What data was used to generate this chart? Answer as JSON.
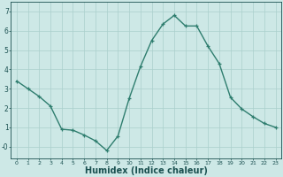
{
  "x": [
    0,
    1,
    2,
    3,
    4,
    5,
    6,
    7,
    8,
    9,
    10,
    11,
    12,
    13,
    14,
    15,
    16,
    17,
    18,
    19,
    20,
    21,
    22,
    23
  ],
  "y": [
    3.4,
    3.0,
    2.6,
    2.1,
    0.9,
    0.85,
    0.6,
    0.3,
    -0.2,
    0.55,
    2.5,
    4.15,
    5.5,
    6.35,
    6.8,
    6.25,
    6.25,
    5.2,
    4.3,
    2.55,
    1.95,
    1.55,
    1.2,
    1.0
  ],
  "line_color": "#2e7d6e",
  "marker": "+",
  "marker_size": 3.5,
  "bg_color": "#cde8e6",
  "grid_color": "#aacfcc",
  "tick_color": "#1a5050",
  "xlabel": "Humidex (Indice chaleur)",
  "xlabel_fontsize": 7,
  "xlim": [
    -0.5,
    23.5
  ],
  "ylim": [
    -0.6,
    7.5
  ],
  "yticks": [
    0,
    1,
    2,
    3,
    4,
    5,
    6,
    7
  ],
  "ytick_labels": [
    "-0",
    "1",
    "2",
    "3",
    "4",
    "5",
    "6",
    "7"
  ],
  "xticks": [
    0,
    1,
    2,
    3,
    4,
    5,
    6,
    7,
    8,
    9,
    10,
    11,
    12,
    13,
    14,
    15,
    16,
    17,
    18,
    19,
    20,
    21,
    22,
    23
  ],
  "line_width": 1.0,
  "spine_color": "#1a5050"
}
